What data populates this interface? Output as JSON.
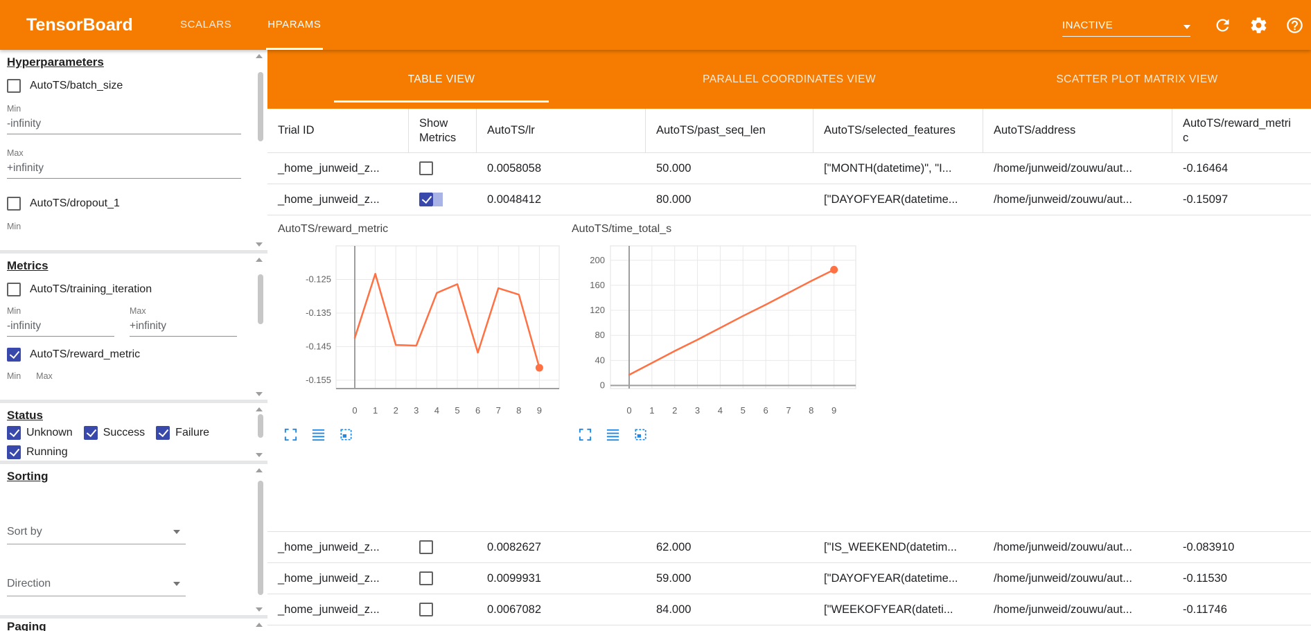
{
  "colors": {
    "header_orange": "#f57c00",
    "checkbox_indigo": "#3949ab",
    "chart_line_orange": "#ff7043",
    "tool_icon_blue": "#1e88e5"
  },
  "icons": [
    "dropdown-arrow-icon",
    "refresh-icon",
    "settings-icon",
    "help-icon",
    "scroll-up-icon",
    "scroll-down-icon",
    "fullscreen-icon",
    "horizontal-lines-icon",
    "drag-select-icon"
  ],
  "header": {
    "title": "TensorBoard",
    "tabs": [
      {
        "label": "SCALARS"
      },
      {
        "label": "HPARAMS"
      }
    ],
    "status_dropdown": "INACTIVE"
  },
  "sidebar": {
    "hyperparameters": {
      "heading": "Hyperparameters",
      "batch_size": {
        "label": "AutoTS/batch_size",
        "checked": false,
        "min_label": "Min",
        "min_value": "-infinity",
        "max_label": "Max",
        "max_value": "+infinity"
      },
      "dropout": {
        "label": "AutoTS/dropout_1",
        "checked": false,
        "min_label": "Min"
      }
    },
    "metrics": {
      "heading": "Metrics",
      "training_iteration": {
        "label": "AutoTS/training_iteration",
        "checked": false,
        "min_label": "Min",
        "min_value": "-infinity",
        "max_label": "Max",
        "max_value": "+infinity"
      },
      "reward_metric": {
        "label": "AutoTS/reward_metric",
        "checked": true,
        "min_label": "Min",
        "max_label": "Max"
      }
    },
    "status": {
      "heading": "Status",
      "items": [
        {
          "label": "Unknown",
          "checked": true
        },
        {
          "label": "Success",
          "checked": true
        },
        {
          "label": "Failure",
          "checked": true
        },
        {
          "label": "Running",
          "checked": true
        }
      ]
    },
    "sorting": {
      "heading": "Sorting",
      "sort_by_placeholder": "Sort by",
      "direction_placeholder": "Direction"
    },
    "paging": {
      "heading": "Paging"
    }
  },
  "main": {
    "view_tabs": [
      {
        "label": "TABLE VIEW",
        "active": true
      },
      {
        "label": "PARALLEL COORDINATES VIEW",
        "active": false
      },
      {
        "label": "SCATTER PLOT MATRIX VIEW",
        "active": false
      }
    ],
    "table": {
      "columns": [
        "Trial ID",
        "Show Metrics",
        "AutoTS/lr",
        "AutoTS/past_seq_len",
        "AutoTS/selected_features",
        "AutoTS/address",
        "AutoTS/reward_metric"
      ],
      "rows": [
        {
          "trial_id": "_home_junweid_z...",
          "show_metrics": false,
          "lr": "0.0058058",
          "past_seq_len": "50.000",
          "selected_features": "[\"MONTH(datetime)\", \"I...",
          "address": "/home/junweid/zouwu/aut...",
          "reward_metric": "-0.16464"
        },
        {
          "trial_id": "_home_junweid_z...",
          "show_metrics": true,
          "lr": "0.0048412",
          "past_seq_len": "80.000",
          "selected_features": "[\"DAYOFYEAR(datetime...",
          "address": "/home/junweid/zouwu/aut...",
          "reward_metric": "-0.15097"
        },
        {
          "trial_id": "_home_junweid_z...",
          "show_metrics": false,
          "lr": "0.0082627",
          "past_seq_len": "62.000",
          "selected_features": "[\"IS_WEEKEND(datetim...",
          "address": "/home/junweid/zouwu/aut...",
          "reward_metric": "-0.083910"
        },
        {
          "trial_id": "_home_junweid_z...",
          "show_metrics": false,
          "lr": "0.0099931",
          "past_seq_len": "59.000",
          "selected_features": "[\"DAYOFYEAR(datetime...",
          "address": "/home/junweid/zouwu/aut...",
          "reward_metric": "-0.11530"
        },
        {
          "trial_id": "_home_junweid_z...",
          "show_metrics": false,
          "lr": "0.0067082",
          "past_seq_len": "84.000",
          "selected_features": "[\"WEEKOFYEAR(dateti...",
          "address": "/home/junweid/zouwu/aut...",
          "reward_metric": "-0.11746"
        }
      ]
    }
  },
  "chart_data": [
    {
      "type": "line",
      "title": "AutoTS/reward_metric",
      "x": [
        0,
        1,
        2,
        3,
        4,
        5,
        6,
        7,
        8,
        9
      ],
      "values": [
        -0.1424,
        -0.1233,
        -0.1445,
        -0.1447,
        -0.129,
        -0.1264,
        -0.1468,
        -0.1276,
        -0.1295,
        -0.1513
      ],
      "yticks": [
        -0.125,
        -0.135,
        -0.145,
        -0.155
      ],
      "ytick_labels": [
        "-0.125",
        "-0.135",
        "-0.145",
        "-0.155"
      ],
      "ylim": [
        -0.1575,
        -0.115
      ],
      "xlabel": "",
      "ylabel": "",
      "grid": true,
      "legend": "none",
      "line_color": "#ff7043",
      "endpoint_dot": true
    },
    {
      "type": "line",
      "title": "AutoTS/time_total_s",
      "x": [
        0,
        1,
        2,
        3,
        4,
        5,
        6,
        7,
        8,
        9
      ],
      "values": [
        17,
        36,
        55,
        73,
        92,
        111,
        129,
        148,
        167,
        185
      ],
      "yticks": [
        0,
        40,
        80,
        120,
        160,
        200
      ],
      "ytick_labels": [
        "0",
        "40",
        "80",
        "120",
        "160",
        "200"
      ],
      "ylim": [
        -5,
        223
      ],
      "xlabel": "",
      "ylabel": "",
      "grid": true,
      "legend": "none",
      "line_color": "#ff7043",
      "endpoint_dot": true
    }
  ]
}
